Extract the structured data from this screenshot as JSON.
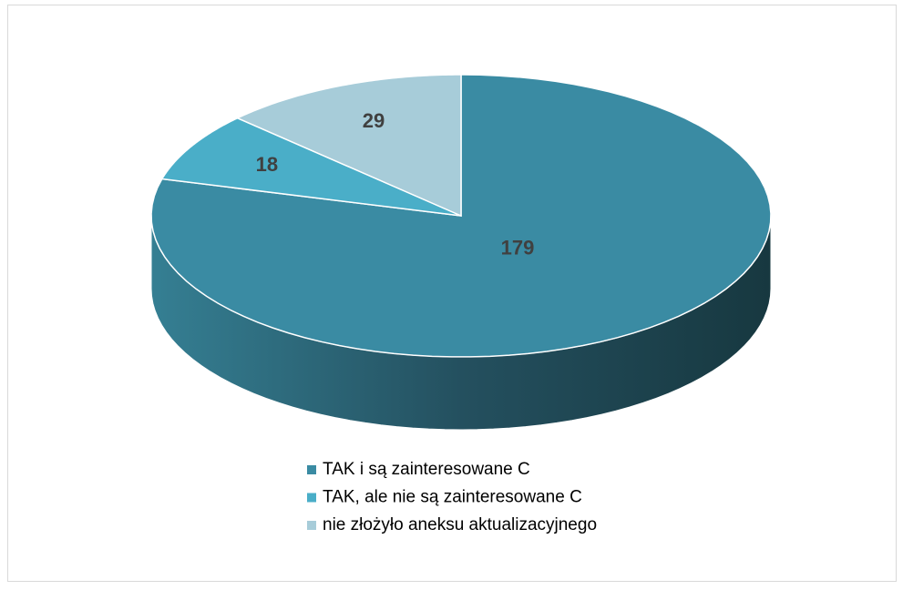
{
  "chart_data": {
    "type": "pie3d",
    "categories": [
      "TAK i są zainteresowane C",
      "TAK, ale nie są zainteresowane C",
      "nie złożyło aneksu aktualizacyjnego"
    ],
    "values": [
      179,
      18,
      29
    ],
    "colors": [
      "#3a8ba3",
      "#4aaec8",
      "#a7ccd9"
    ],
    "legend": "bottom"
  }
}
